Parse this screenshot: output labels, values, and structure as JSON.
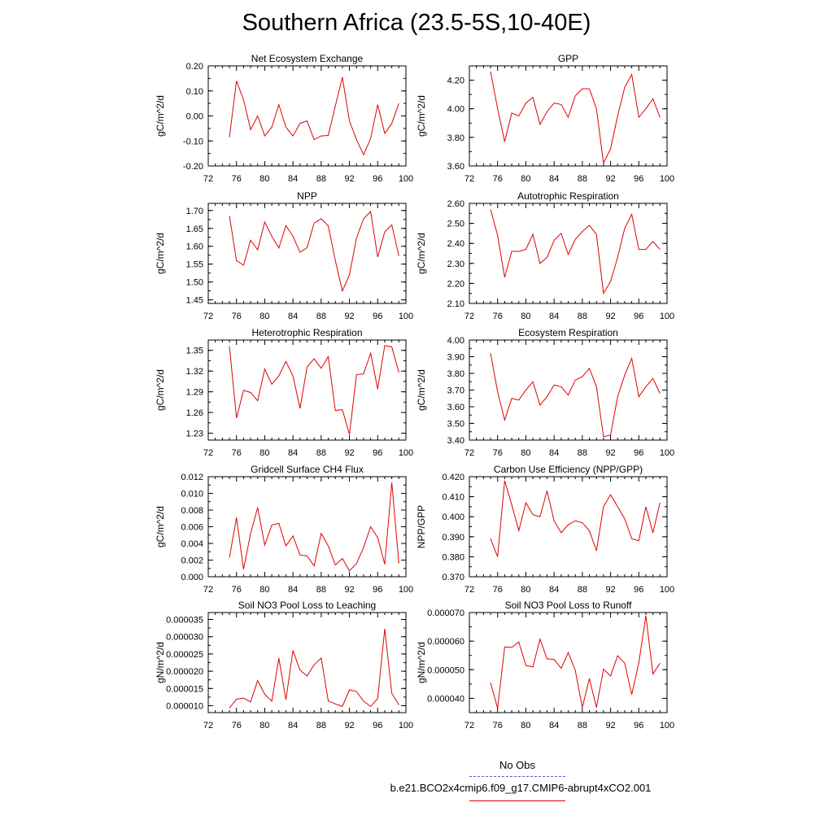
{
  "title": "Southern Africa (23.5-5S,10-40E)",
  "legend": {
    "entries": [
      {
        "label": "No Obs",
        "color": "#5a5ad2",
        "style": "dashed"
      },
      {
        "label": "b.e21.BCO2x4cmip6.f09_g17.CMIP6-abrupt4xCO2.001",
        "color": "#e00000",
        "style": "solid"
      }
    ]
  },
  "chart_data": [
    {
      "type": "line",
      "title": "Net Ecosystem Exchange",
      "ylabel": "gC/m^2/d",
      "xlabel": "",
      "xlim": [
        72,
        100
      ],
      "xticks": [
        72,
        76,
        80,
        84,
        88,
        92,
        96,
        100
      ],
      "xtick_labels": [
        "72",
        "76",
        "80",
        "84",
        "88",
        "92",
        "96",
        "100"
      ],
      "ylim": [
        -0.2,
        0.2
      ],
      "yticks": [
        -0.2,
        -0.1,
        0.0,
        0.1,
        0.2
      ],
      "ytick_labels": [
        "-0.20",
        "-0.10",
        "0.00",
        "0.10",
        "0.20"
      ],
      "series": [
        {
          "color": "#e00000",
          "x": [
            75,
            76,
            77,
            78,
            79,
            80,
            81,
            82,
            83,
            84,
            85,
            86,
            87,
            88,
            89,
            90,
            91,
            92,
            93,
            94,
            95,
            96,
            97,
            98,
            99
          ],
          "y": [
            -0.085,
            0.14,
            0.065,
            -0.055,
            0.0,
            -0.08,
            -0.045,
            0.045,
            -0.045,
            -0.08,
            -0.03,
            -0.02,
            -0.095,
            -0.08,
            -0.078,
            0.04,
            0.155,
            -0.02,
            -0.095,
            -0.155,
            -0.09,
            0.045,
            -0.07,
            -0.03,
            0.05
          ]
        }
      ]
    },
    {
      "type": "line",
      "title": "GPP",
      "ylabel": "gC/m^2/d",
      "xlabel": "",
      "xlim": [
        72,
        100
      ],
      "xticks": [
        72,
        76,
        80,
        84,
        88,
        92,
        96,
        100
      ],
      "xtick_labels": [
        "72",
        "76",
        "80",
        "84",
        "88",
        "92",
        "96",
        "100"
      ],
      "ylim": [
        3.6,
        4.3
      ],
      "yticks": [
        3.6,
        3.8,
        4.0,
        4.2
      ],
      "ytick_labels": [
        "3.60",
        "3.80",
        "4.00",
        "4.20"
      ],
      "series": [
        {
          "color": "#e00000",
          "x": [
            75,
            76,
            77,
            78,
            79,
            80,
            81,
            82,
            83,
            84,
            85,
            86,
            87,
            88,
            89,
            90,
            91,
            92,
            93,
            94,
            95,
            96,
            97,
            98,
            99
          ],
          "y": [
            4.26,
            4.0,
            3.77,
            3.97,
            3.95,
            4.04,
            4.08,
            3.89,
            3.98,
            4.04,
            4.03,
            3.94,
            4.09,
            4.14,
            4.14,
            4.0,
            3.62,
            3.72,
            3.95,
            4.15,
            4.24,
            3.94,
            4.0,
            4.07,
            3.94
          ]
        }
      ]
    },
    {
      "type": "line",
      "title": "NPP",
      "ylabel": "gC/m^2/d",
      "xlabel": "",
      "xlim": [
        72,
        100
      ],
      "xticks": [
        72,
        76,
        80,
        84,
        88,
        92,
        96,
        100
      ],
      "xtick_labels": [
        "72",
        "76",
        "80",
        "84",
        "88",
        "92",
        "96",
        "100"
      ],
      "ylim": [
        1.44,
        1.72
      ],
      "yticks": [
        1.45,
        1.5,
        1.55,
        1.6,
        1.65,
        1.7
      ],
      "ytick_labels": [
        "1.45",
        "1.50",
        "1.55",
        "1.60",
        "1.65",
        "1.70"
      ],
      "series": [
        {
          "color": "#e00000",
          "x": [
            75,
            76,
            77,
            78,
            79,
            80,
            81,
            82,
            83,
            84,
            85,
            86,
            87,
            88,
            89,
            90,
            91,
            92,
            93,
            94,
            95,
            96,
            97,
            98,
            99
          ],
          "y": [
            1.685,
            1.56,
            1.547,
            1.617,
            1.59,
            1.668,
            1.628,
            1.595,
            1.658,
            1.628,
            1.583,
            1.596,
            1.665,
            1.677,
            1.657,
            1.56,
            1.475,
            1.52,
            1.623,
            1.677,
            1.697,
            1.57,
            1.64,
            1.66,
            1.573
          ]
        }
      ]
    },
    {
      "type": "line",
      "title": "Autotrophic Respiration",
      "ylabel": "gC/m^2/d",
      "xlabel": "",
      "xlim": [
        72,
        100
      ],
      "xticks": [
        72,
        76,
        80,
        84,
        88,
        92,
        96,
        100
      ],
      "xtick_labels": [
        "72",
        "76",
        "80",
        "84",
        "88",
        "92",
        "96",
        "100"
      ],
      "ylim": [
        2.1,
        2.6
      ],
      "yticks": [
        2.1,
        2.2,
        2.3,
        2.4,
        2.5,
        2.6
      ],
      "ytick_labels": [
        "2.10",
        "2.20",
        "2.30",
        "2.40",
        "2.50",
        "2.60"
      ],
      "series": [
        {
          "color": "#e00000",
          "x": [
            75,
            76,
            77,
            78,
            79,
            80,
            81,
            82,
            83,
            84,
            85,
            86,
            87,
            88,
            89,
            90,
            91,
            92,
            93,
            94,
            95,
            96,
            97,
            98,
            99
          ],
          "y": [
            2.57,
            2.44,
            2.23,
            2.36,
            2.36,
            2.37,
            2.445,
            2.3,
            2.33,
            2.415,
            2.45,
            2.345,
            2.42,
            2.46,
            2.49,
            2.445,
            2.15,
            2.21,
            2.33,
            2.475,
            2.545,
            2.37,
            2.37,
            2.41,
            2.37
          ]
        }
      ]
    },
    {
      "type": "line",
      "title": "Heterotrophic Respiration",
      "ylabel": "gC/m^2/d",
      "xlabel": "",
      "xlim": [
        72,
        100
      ],
      "xticks": [
        72,
        76,
        80,
        84,
        88,
        92,
        96,
        100
      ],
      "xtick_labels": [
        "72",
        "76",
        "80",
        "84",
        "88",
        "92",
        "96",
        "100"
      ],
      "ylim": [
        1.22,
        1.365
      ],
      "yticks": [
        1.23,
        1.26,
        1.29,
        1.32,
        1.35
      ],
      "ytick_labels": [
        "1.23",
        "1.26",
        "1.29",
        "1.32",
        "1.35"
      ],
      "series": [
        {
          "color": "#e00000",
          "x": [
            75,
            76,
            77,
            78,
            79,
            80,
            81,
            82,
            83,
            84,
            85,
            86,
            87,
            88,
            89,
            90,
            91,
            92,
            93,
            94,
            95,
            96,
            97,
            98,
            99
          ],
          "y": [
            1.356,
            1.252,
            1.292,
            1.289,
            1.277,
            1.323,
            1.301,
            1.313,
            1.334,
            1.313,
            1.266,
            1.326,
            1.338,
            1.324,
            1.341,
            1.263,
            1.264,
            1.228,
            1.315,
            1.316,
            1.346,
            1.294,
            1.357,
            1.355,
            1.318
          ]
        }
      ]
    },
    {
      "type": "line",
      "title": "Ecosystem Respiration",
      "ylabel": "gC/m^2/d",
      "xlabel": "",
      "xlim": [
        72,
        100
      ],
      "xticks": [
        72,
        76,
        80,
        84,
        88,
        92,
        96,
        100
      ],
      "xtick_labels": [
        "72",
        "76",
        "80",
        "84",
        "88",
        "92",
        "96",
        "100"
      ],
      "ylim": [
        3.4,
        4.0
      ],
      "yticks": [
        3.4,
        3.5,
        3.6,
        3.7,
        3.8,
        3.9,
        4.0
      ],
      "ytick_labels": [
        "3.40",
        "3.50",
        "3.60",
        "3.70",
        "3.80",
        "3.90",
        "4.00"
      ],
      "series": [
        {
          "color": "#e00000",
          "x": [
            75,
            76,
            77,
            78,
            79,
            80,
            81,
            82,
            83,
            84,
            85,
            86,
            87,
            88,
            89,
            90,
            91,
            92,
            93,
            94,
            95,
            96,
            97,
            98,
            99
          ],
          "y": [
            3.92,
            3.69,
            3.52,
            3.65,
            3.64,
            3.7,
            3.75,
            3.61,
            3.66,
            3.73,
            3.72,
            3.67,
            3.76,
            3.78,
            3.83,
            3.72,
            3.42,
            3.43,
            3.66,
            3.79,
            3.89,
            3.66,
            3.72,
            3.77,
            3.68
          ]
        }
      ]
    },
    {
      "type": "line",
      "title": "Gridcell Surface CH4 Flux",
      "ylabel": "gC/m^2/d",
      "xlabel": "",
      "xlim": [
        72,
        100
      ],
      "xticks": [
        72,
        76,
        80,
        84,
        88,
        92,
        96,
        100
      ],
      "xtick_labels": [
        "72",
        "76",
        "80",
        "84",
        "88",
        "92",
        "96",
        "100"
      ],
      "ylim": [
        0.0,
        0.012
      ],
      "yticks": [
        0.0,
        0.002,
        0.004,
        0.006,
        0.008,
        0.01,
        0.012
      ],
      "ytick_labels": [
        "0.000",
        "0.002",
        "0.004",
        "0.006",
        "0.008",
        "0.010",
        "0.012"
      ],
      "series": [
        {
          "color": "#e00000",
          "x": [
            75,
            76,
            77,
            78,
            79,
            80,
            81,
            82,
            83,
            84,
            85,
            86,
            87,
            88,
            89,
            90,
            91,
            92,
            93,
            94,
            95,
            96,
            97,
            98,
            99
          ],
          "y": [
            0.0023,
            0.0071,
            0.0009,
            0.0052,
            0.0083,
            0.0038,
            0.0062,
            0.0064,
            0.0037,
            0.0049,
            0.0026,
            0.0025,
            0.0013,
            0.0052,
            0.0037,
            0.0014,
            0.0022,
            0.0007,
            0.0016,
            0.0035,
            0.006,
            0.0047,
            0.0015,
            0.0113,
            0.0016
          ]
        }
      ]
    },
    {
      "type": "line",
      "title": "Carbon Use Efficiency (NPP/GPP)",
      "ylabel": "NPP/GPP",
      "xlabel": "",
      "xlim": [
        72,
        100
      ],
      "xticks": [
        72,
        76,
        80,
        84,
        88,
        92,
        96,
        100
      ],
      "xtick_labels": [
        "72",
        "76",
        "80",
        "84",
        "88",
        "92",
        "96",
        "100"
      ],
      "ylim": [
        0.37,
        0.42
      ],
      "yticks": [
        0.37,
        0.38,
        0.39,
        0.4,
        0.41,
        0.42
      ],
      "ytick_labels": [
        "0.370",
        "0.380",
        "0.390",
        "0.400",
        "0.410",
        "0.420"
      ],
      "series": [
        {
          "color": "#e00000",
          "x": [
            75,
            76,
            77,
            78,
            79,
            80,
            81,
            82,
            83,
            84,
            85,
            86,
            87,
            88,
            89,
            90,
            91,
            92,
            93,
            94,
            95,
            96,
            97,
            98,
            99
          ],
          "y": [
            0.389,
            0.38,
            0.418,
            0.406,
            0.393,
            0.407,
            0.401,
            0.4,
            0.413,
            0.398,
            0.392,
            0.396,
            0.398,
            0.397,
            0.393,
            0.383,
            0.405,
            0.411,
            0.405,
            0.399,
            0.389,
            0.388,
            0.405,
            0.392,
            0.407
          ]
        }
      ]
    },
    {
      "type": "line",
      "title": "Soil NO3 Pool Loss to Leaching",
      "ylabel": "gN/m^2/d",
      "xlabel": "",
      "xlim": [
        72,
        100
      ],
      "xticks": [
        72,
        76,
        80,
        84,
        88,
        92,
        96,
        100
      ],
      "xtick_labels": [
        "72",
        "76",
        "80",
        "84",
        "88",
        "92",
        "96",
        "100"
      ],
      "ylim": [
        8e-06,
        3.7e-05
      ],
      "yticks": [
        1e-05,
        1.5e-05,
        2e-05,
        2.5e-05,
        3e-05,
        3.5e-05
      ],
      "ytick_labels": [
        "0.000010",
        "0.000015",
        "0.000020",
        "0.000025",
        "0.000030",
        "0.000035"
      ],
      "series": [
        {
          "color": "#e00000",
          "x": [
            75,
            76,
            77,
            78,
            79,
            80,
            81,
            82,
            83,
            84,
            85,
            86,
            87,
            88,
            89,
            90,
            91,
            92,
            93,
            94,
            95,
            96,
            97,
            98,
            99
          ],
          "y": [
            9.3e-06,
            1.19e-05,
            1.22e-05,
            1.11e-05,
            1.73e-05,
            1.33e-05,
            1.13e-05,
            2.38e-05,
            1.17e-05,
            2.6e-05,
            2.03e-05,
            1.86e-05,
            2.19e-05,
            2.38e-05,
            1.14e-05,
            1.05e-05,
            9.8e-06,
            1.46e-05,
            1.41e-05,
            1.13e-05,
            9.8e-06,
            1.21e-05,
            3.23e-05,
            1.36e-05,
            1.02e-05
          ]
        }
      ]
    },
    {
      "type": "line",
      "title": "Soil NO3 Pool Loss to Runoff",
      "ylabel": "gN/m^2/d",
      "xlabel": "",
      "xlim": [
        72,
        100
      ],
      "xticks": [
        72,
        76,
        80,
        84,
        88,
        92,
        96,
        100
      ],
      "xtick_labels": [
        "72",
        "76",
        "80",
        "84",
        "88",
        "92",
        "96",
        "100"
      ],
      "ylim": [
        3.5e-05,
        7e-05
      ],
      "yticks": [
        4e-05,
        5e-05,
        6e-05,
        7e-05
      ],
      "ytick_labels": [
        "0.000040",
        "0.000050",
        "0.000060",
        "0.000070"
      ],
      "series": [
        {
          "color": "#e00000",
          "x": [
            75,
            76,
            77,
            78,
            79,
            80,
            81,
            82,
            83,
            84,
            85,
            86,
            87,
            88,
            89,
            90,
            91,
            92,
            93,
            94,
            95,
            96,
            97,
            98,
            99
          ],
          "y": [
            4.55e-05,
            3.65e-05,
            5.8e-05,
            5.78e-05,
            5.97e-05,
            5.15e-05,
            5.1e-05,
            6.07e-05,
            5.38e-05,
            5.36e-05,
            5.05e-05,
            5.6e-05,
            4.98e-05,
            3.68e-05,
            4.69e-05,
            3.68e-05,
            5.02e-05,
            4.78e-05,
            5.49e-05,
            5.23e-05,
            4.13e-05,
            5.24e-05,
            6.89e-05,
            4.85e-05,
            5.23e-05
          ]
        }
      ]
    }
  ]
}
